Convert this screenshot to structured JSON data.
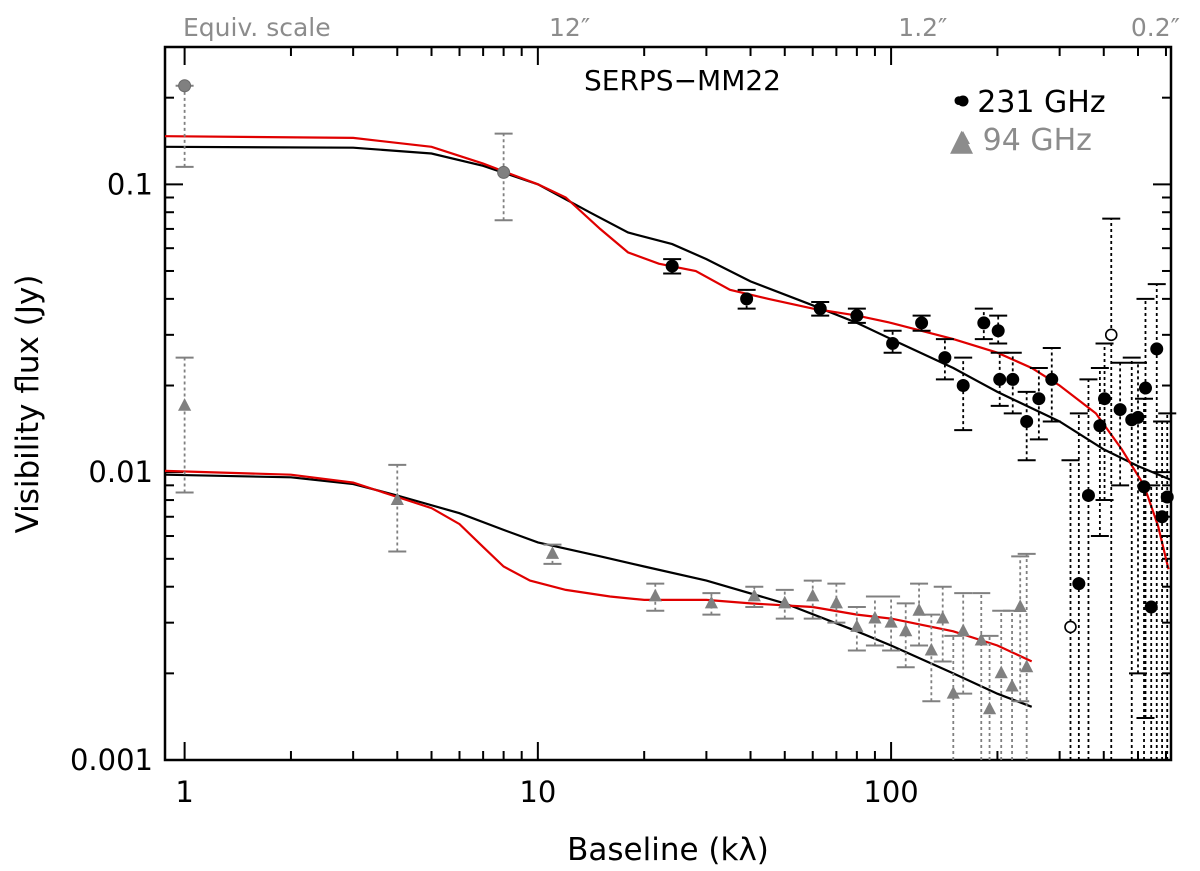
{
  "chart_data": {
    "type": "scatter",
    "title": "SERPS−MM22",
    "xlabel": "Baseline (kλ)",
    "ylabel": "Visibility flux (Jy)",
    "xscale": "log",
    "yscale": "log",
    "xlim": [
      0.88,
      620
    ],
    "ylim": [
      0.001,
      0.3
    ],
    "x_ticks": [
      {
        "value": 1,
        "label": "1"
      },
      {
        "value": 10,
        "label": "10"
      },
      {
        "value": 100,
        "label": "100"
      }
    ],
    "y_ticks": [
      {
        "value": 0.001,
        "label": "0.001"
      },
      {
        "value": 0.01,
        "label": "0.01"
      },
      {
        "value": 0.1,
        "label": "0.1"
      }
    ],
    "top_axis": {
      "label": "Equiv. scale",
      "ticks": [
        {
          "value": 12.3,
          "label": "12″"
        },
        {
          "value": 123,
          "label": "1.2″"
        },
        {
          "value": 600,
          "label": "0.2″"
        }
      ]
    },
    "legend": {
      "position": "top-right",
      "entries": [
        {
          "label": "• 231 GHz",
          "marker": "circle",
          "color": "#000000"
        },
        {
          "label": "▲ 94 GHz",
          "marker": "triangle",
          "color": "#8c8c8c"
        }
      ]
    },
    "series": [
      {
        "name": "231 GHz",
        "marker": "circle",
        "color": "#000000",
        "points": [
          {
            "x": 1.0,
            "y": 0.22,
            "err": [
              0.115,
              0.22
            ],
            "color": "#808080"
          },
          {
            "x": 8.0,
            "y": 0.11,
            "err": [
              0.075,
              0.15
            ],
            "color": "#808080"
          },
          {
            "x": 24,
            "y": 0.052,
            "err": [
              0.049,
              0.055
            ]
          },
          {
            "x": 39,
            "y": 0.04,
            "err": [
              0.037,
              0.043
            ]
          },
          {
            "x": 63,
            "y": 0.037,
            "err": [
              0.035,
              0.039
            ]
          },
          {
            "x": 80,
            "y": 0.035,
            "err": [
              0.033,
              0.037
            ]
          },
          {
            "x": 101,
            "y": 0.028,
            "err": [
              0.026,
              0.031
            ]
          },
          {
            "x": 122,
            "y": 0.033,
            "err": [
              0.031,
              0.035
            ]
          },
          {
            "x": 142,
            "y": 0.025,
            "err": [
              0.021,
              0.029
            ]
          },
          {
            "x": 160,
            "y": 0.02,
            "err": [
              0.014,
              0.025
            ]
          },
          {
            "x": 183,
            "y": 0.033,
            "err": [
              0.029,
              0.037
            ]
          },
          {
            "x": 201,
            "y": 0.031,
            "err": [
              0.028,
              0.035
            ]
          },
          {
            "x": 203,
            "y": 0.021,
            "err": [
              0.017,
              0.026
            ]
          },
          {
            "x": 221,
            "y": 0.021,
            "err": [
              0.016,
              0.026
            ]
          },
          {
            "x": 242,
            "y": 0.015,
            "err": [
              0.011,
              0.019
            ]
          },
          {
            "x": 262,
            "y": 0.018,
            "err": [
              0.013,
              0.023
            ]
          },
          {
            "x": 285,
            "y": 0.021,
            "err": [
              0.015,
              0.027
            ]
          },
          {
            "x": 322,
            "y": 0.0029,
            "open": true,
            "err": [
              0.001,
              0.011
            ]
          },
          {
            "x": 340,
            "y": 0.0041,
            "err": [
              0.001,
              0.016
            ]
          },
          {
            "x": 362,
            "y": 0.0083,
            "err": [
              0.001,
              0.021
            ]
          },
          {
            "x": 390,
            "y": 0.0145,
            "err": [
              0.006,
              0.023
            ]
          },
          {
            "x": 402,
            "y": 0.018,
            "err": [
              0.008,
              0.028
            ]
          },
          {
            "x": 420,
            "y": 0.03,
            "open": true,
            "err": [
              0.001,
              0.076
            ]
          },
          {
            "x": 445,
            "y": 0.0165,
            "err": [
              0.009,
              0.024
            ]
          },
          {
            "x": 480,
            "y": 0.0152,
            "err": [
              0.001,
              0.025
            ]
          },
          {
            "x": 500,
            "y": 0.0155,
            "err": [
              0.002,
              0.024
            ]
          },
          {
            "x": 520,
            "y": 0.0089,
            "err": [
              0.001,
              0.018
            ]
          },
          {
            "x": 525,
            "y": 0.0196,
            "err": [
              0.0014,
              0.04
            ]
          },
          {
            "x": 545,
            "y": 0.0034,
            "err": [
              0.001,
              0.009
            ]
          },
          {
            "x": 565,
            "y": 0.0268,
            "err": [
              0.001,
              0.045
            ]
          },
          {
            "x": 585,
            "y": 0.007,
            "err": [
              0.001,
              0.015
            ]
          },
          {
            "x": 605,
            "y": 0.0082,
            "err": [
              0.001,
              0.016
            ]
          }
        ]
      },
      {
        "name": "94 GHz",
        "marker": "triangle",
        "color": "#808080",
        "points": [
          {
            "x": 1.0,
            "y": 0.017,
            "err": [
              0.0085,
              0.025
            ]
          },
          {
            "x": 4.0,
            "y": 0.008,
            "err": [
              0.0053,
              0.0106
            ]
          },
          {
            "x": 11,
            "y": 0.0052,
            "err": [
              0.0048,
              0.0056
            ]
          },
          {
            "x": 21.5,
            "y": 0.0037,
            "err": [
              0.0033,
              0.0041
            ]
          },
          {
            "x": 31,
            "y": 0.0035,
            "err": [
              0.0032,
              0.0038
            ]
          },
          {
            "x": 41,
            "y": 0.0037,
            "err": [
              0.0034,
              0.004
            ]
          },
          {
            "x": 50,
            "y": 0.0035,
            "err": [
              0.0031,
              0.0039
            ]
          },
          {
            "x": 60,
            "y": 0.0037,
            "err": [
              0.0031,
              0.0042
            ]
          },
          {
            "x": 70,
            "y": 0.0035,
            "err": [
              0.003,
              0.0041
            ]
          },
          {
            "x": 80,
            "y": 0.0029,
            "err": [
              0.0024,
              0.0034
            ]
          },
          {
            "x": 90,
            "y": 0.0031,
            "err": [
              0.0025,
              0.0037
            ]
          },
          {
            "x": 100,
            "y": 0.003,
            "err": [
              0.0024,
              0.0037
            ]
          },
          {
            "x": 110,
            "y": 0.0028,
            "err": [
              0.0021,
              0.0035
            ]
          },
          {
            "x": 120,
            "y": 0.0033,
            "err": [
              0.0025,
              0.0041
            ]
          },
          {
            "x": 130,
            "y": 0.0024,
            "err": [
              0.0016,
              0.0032
            ]
          },
          {
            "x": 140,
            "y": 0.0031,
            "err": [
              0.0022,
              0.004
            ]
          },
          {
            "x": 150,
            "y": 0.0017,
            "err": [
              0.001,
              0.0027
            ]
          },
          {
            "x": 160,
            "y": 0.0028,
            "err": [
              0.0017,
              0.0038
            ]
          },
          {
            "x": 180,
            "y": 0.0026,
            "err": [
              0.001,
              0.0038
            ]
          },
          {
            "x": 190,
            "y": 0.0015,
            "err": [
              0.001,
              0.0027
            ]
          },
          {
            "x": 205,
            "y": 0.002,
            "err": [
              0.001,
              0.0033
            ]
          },
          {
            "x": 220,
            "y": 0.0018,
            "err": [
              0.001,
              0.0033
            ]
          },
          {
            "x": 232,
            "y": 0.0034,
            "err": [
              0.0016,
              0.0051
            ]
          },
          {
            "x": 242,
            "y": 0.0021,
            "err": [
              0.001,
              0.0052
            ]
          }
        ]
      }
    ],
    "model_curves": [
      {
        "name": "black model 231 GHz",
        "color": "#000000",
        "points": [
          [
            0.88,
            0.135
          ],
          [
            3,
            0.134
          ],
          [
            5,
            0.128
          ],
          [
            7,
            0.116
          ],
          [
            10,
            0.1
          ],
          [
            14,
            0.08
          ],
          [
            18,
            0.068
          ],
          [
            24,
            0.062
          ],
          [
            30,
            0.055
          ],
          [
            40,
            0.046
          ],
          [
            60,
            0.038
          ],
          [
            80,
            0.033
          ],
          [
            100,
            0.029
          ],
          [
            150,
            0.023
          ],
          [
            200,
            0.019
          ],
          [
            300,
            0.015
          ],
          [
            400,
            0.012
          ],
          [
            500,
            0.0105
          ],
          [
            620,
            0.0094
          ]
        ]
      },
      {
        "name": "red model 231 GHz",
        "color": "#e00000",
        "points": [
          [
            0.88,
            0.147
          ],
          [
            3,
            0.145
          ],
          [
            5,
            0.135
          ],
          [
            7,
            0.118
          ],
          [
            10,
            0.1
          ],
          [
            12,
            0.09
          ],
          [
            15,
            0.07
          ],
          [
            18,
            0.058
          ],
          [
            22,
            0.053
          ],
          [
            28,
            0.05
          ],
          [
            35,
            0.043
          ],
          [
            45,
            0.04
          ],
          [
            60,
            0.037
          ],
          [
            80,
            0.035
          ],
          [
            100,
            0.033
          ],
          [
            150,
            0.029
          ],
          [
            200,
            0.026
          ],
          [
            250,
            0.023
          ],
          [
            300,
            0.02
          ],
          [
            380,
            0.016
          ],
          [
            450,
            0.012
          ],
          [
            520,
            0.009
          ],
          [
            570,
            0.0065
          ],
          [
            610,
            0.0046
          ]
        ]
      },
      {
        "name": "black model 94 GHz",
        "color": "#000000",
        "points": [
          [
            0.88,
            0.0098
          ],
          [
            2,
            0.0096
          ],
          [
            3,
            0.0091
          ],
          [
            4,
            0.0083
          ],
          [
            6,
            0.0072
          ],
          [
            8,
            0.0063
          ],
          [
            10,
            0.0057
          ],
          [
            15,
            0.0051
          ],
          [
            20,
            0.0047
          ],
          [
            30,
            0.0042
          ],
          [
            50,
            0.0035
          ],
          [
            80,
            0.0028
          ],
          [
            100,
            0.0025
          ],
          [
            150,
            0.002
          ],
          [
            200,
            0.0017
          ],
          [
            250,
            0.00153
          ]
        ]
      },
      {
        "name": "red model 94 GHz",
        "color": "#e00000",
        "points": [
          [
            0.88,
            0.0101
          ],
          [
            2,
            0.0098
          ],
          [
            3,
            0.0092
          ],
          [
            4,
            0.0082
          ],
          [
            5,
            0.0075
          ],
          [
            6,
            0.0066
          ],
          [
            7,
            0.0055
          ],
          [
            8,
            0.0047
          ],
          [
            9.5,
            0.0042
          ],
          [
            12,
            0.0039
          ],
          [
            16,
            0.0037
          ],
          [
            20,
            0.0036
          ],
          [
            30,
            0.0036
          ],
          [
            40,
            0.0035
          ],
          [
            60,
            0.0034
          ],
          [
            80,
            0.0032
          ],
          [
            100,
            0.0031
          ],
          [
            150,
            0.0028
          ],
          [
            200,
            0.0025
          ],
          [
            250,
            0.0022
          ]
        ]
      }
    ]
  }
}
